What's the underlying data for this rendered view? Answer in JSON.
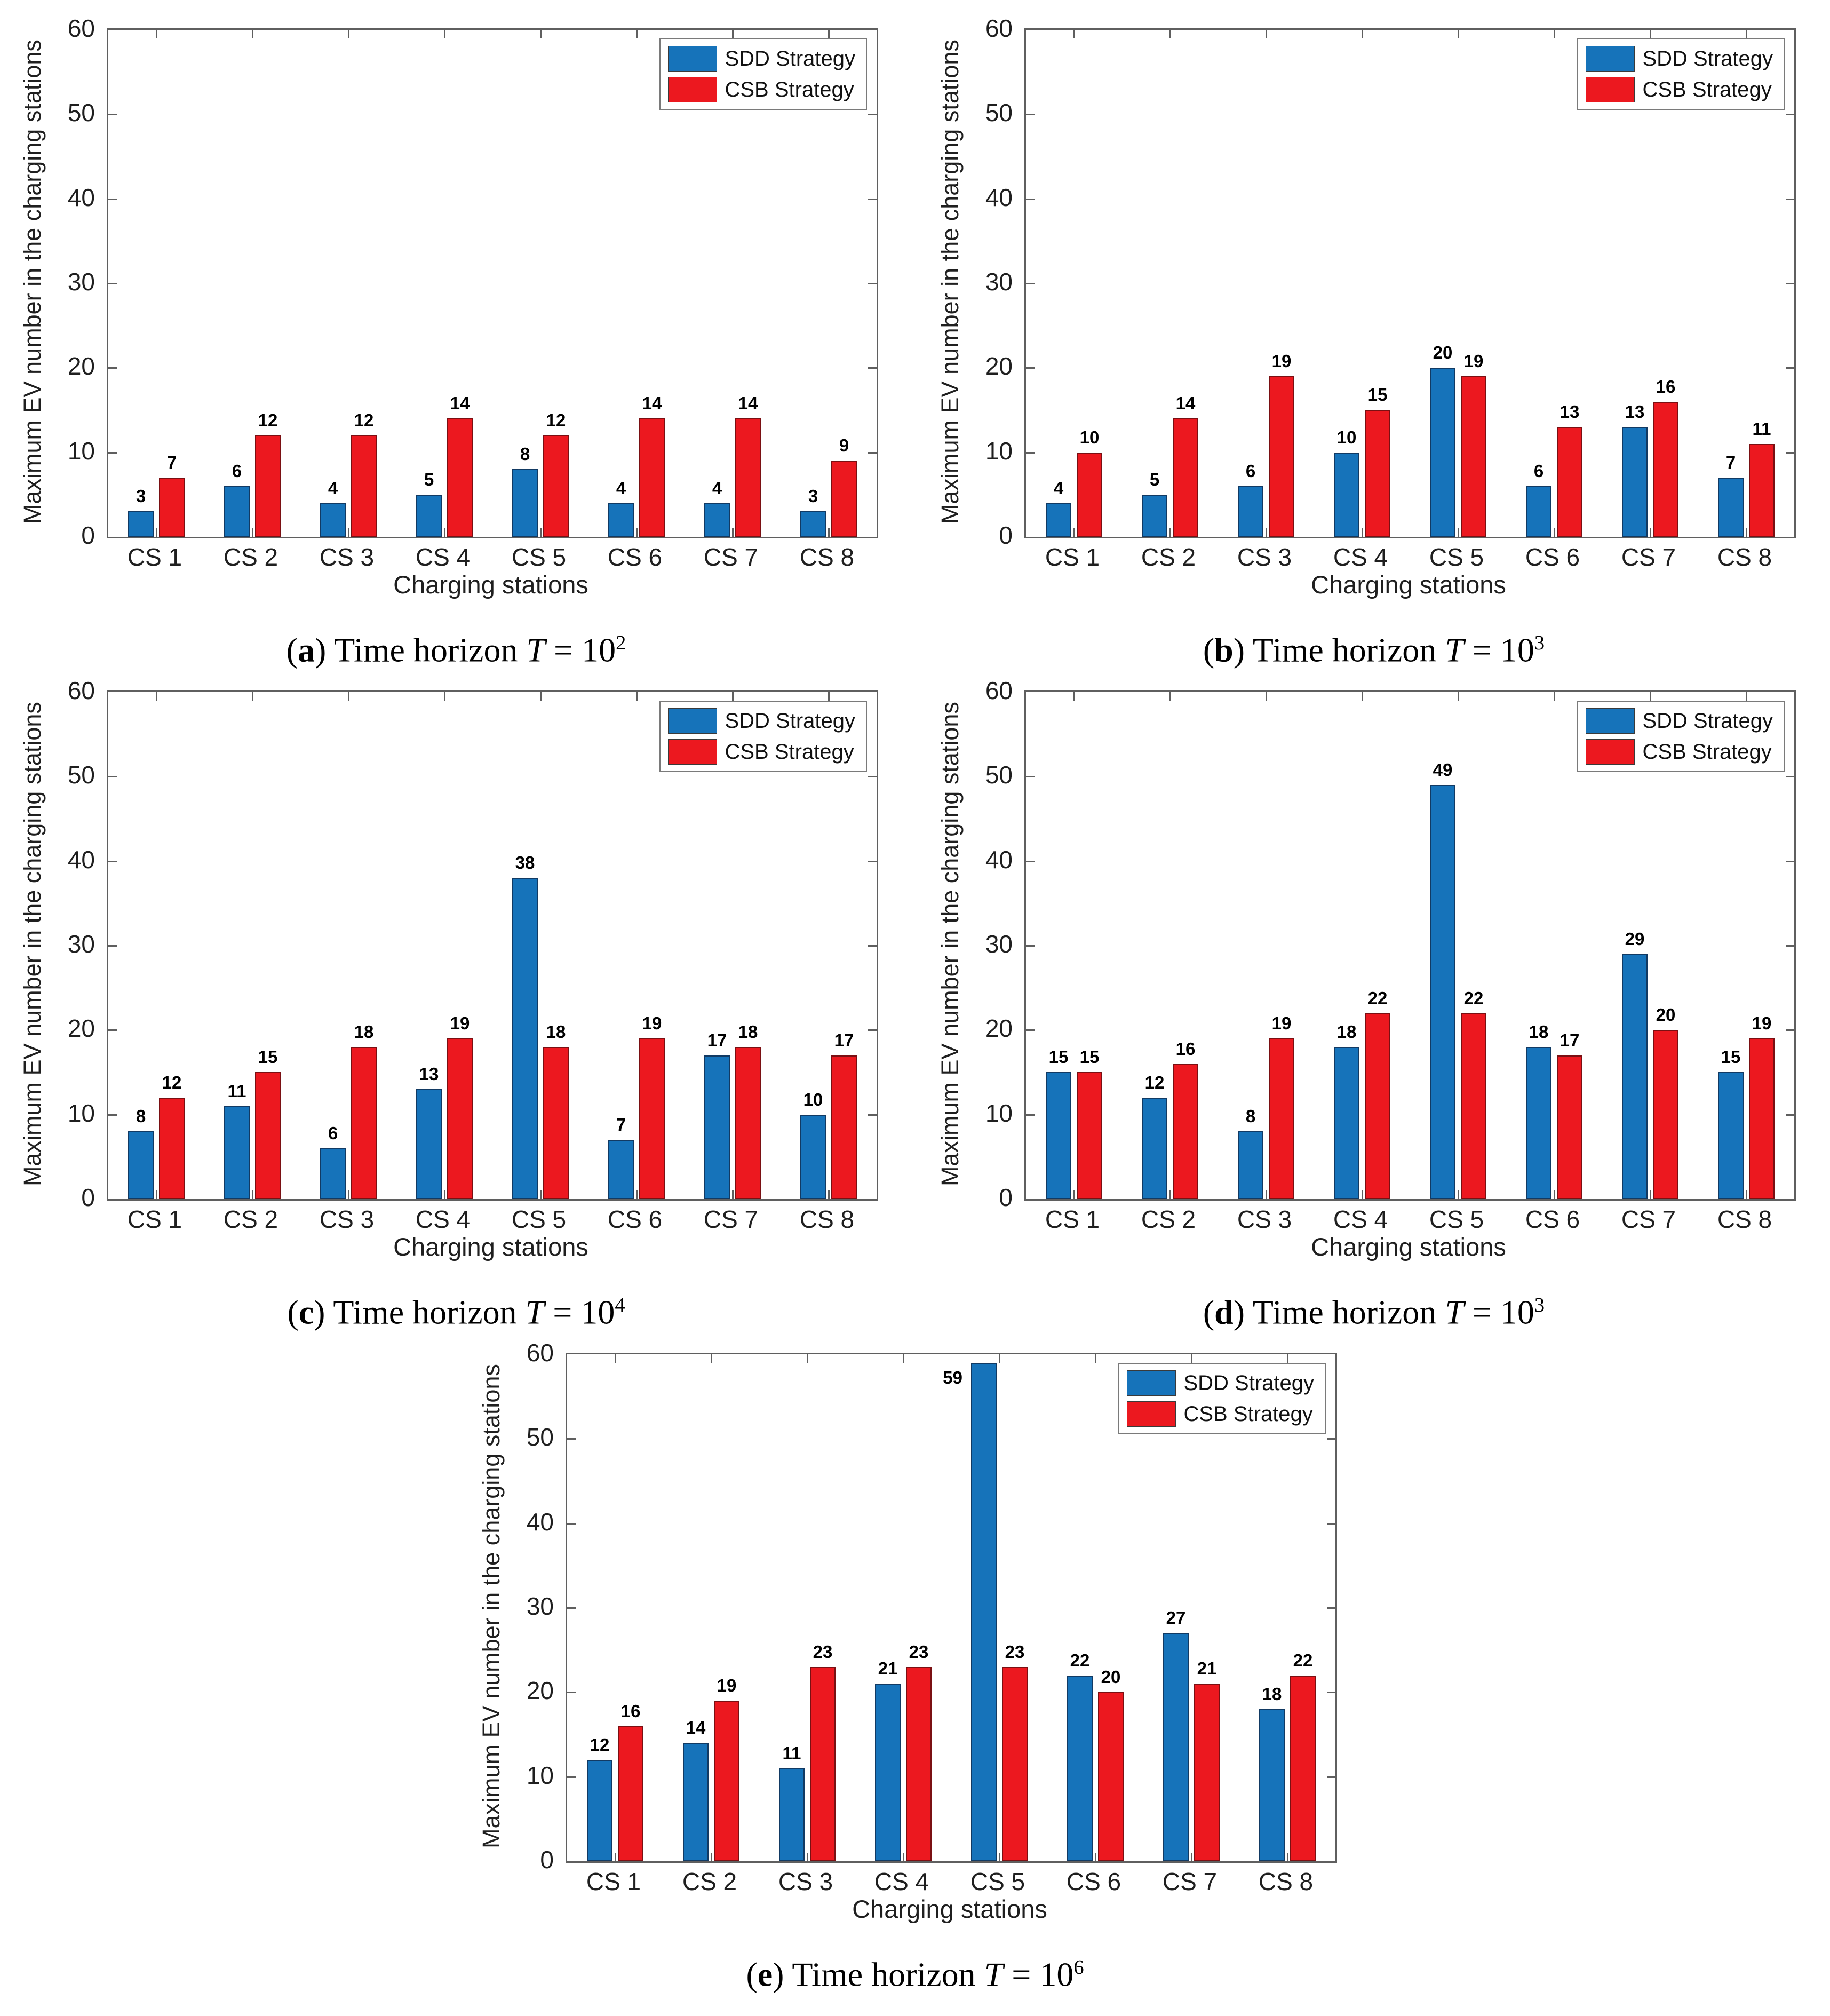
{
  "legend": {
    "items": [
      {
        "label": "SDD Strategy",
        "color": "#1673ba",
        "edge": "#123a63"
      },
      {
        "label": "CSB Strategy",
        "color": "#ec181f",
        "edge": "#7a1013"
      }
    ]
  },
  "axis": {
    "line_color": "#5f5f5f",
    "label_color": "#1f1f1f"
  },
  "chart_data": [
    {
      "id": "a",
      "type": "bar",
      "categories": [
        "CS 1",
        "CS 2",
        "CS 3",
        "CS 4",
        "CS 5",
        "CS 6",
        "CS 7",
        "CS 8"
      ],
      "series": [
        {
          "name": "SDD Strategy",
          "values": [
            3,
            6,
            4,
            5,
            8,
            4,
            4,
            3
          ]
        },
        {
          "name": "CSB Strategy",
          "values": [
            7,
            12,
            12,
            14,
            12,
            14,
            14,
            9
          ]
        }
      ],
      "xlabel": "Charging stations",
      "ylabel": "Maximum EV number in the charging stations",
      "ylim": [
        0,
        60
      ],
      "ytick_step": 10,
      "grid": false,
      "legend_position": "top-right",
      "bar_labels": true,
      "caption": {
        "open": "(",
        "label": "a",
        "close": ") ",
        "text": "Time horizon ",
        "var": "T",
        "eq": " = ",
        "base": "10",
        "exp": "2"
      }
    },
    {
      "id": "b",
      "type": "bar",
      "categories": [
        "CS 1",
        "CS 2",
        "CS 3",
        "CS 4",
        "CS 5",
        "CS 6",
        "CS 7",
        "CS 8"
      ],
      "series": [
        {
          "name": "SDD Strategy",
          "values": [
            4,
            5,
            6,
            10,
            20,
            6,
            13,
            7
          ]
        },
        {
          "name": "CSB Strategy",
          "values": [
            10,
            14,
            19,
            15,
            19,
            13,
            16,
            11
          ]
        }
      ],
      "xlabel": "Charging stations",
      "ylabel": "Maximum EV number in the charging stations",
      "ylim": [
        0,
        60
      ],
      "ytick_step": 10,
      "grid": false,
      "legend_position": "top-right",
      "bar_labels": true,
      "caption": {
        "open": "(",
        "label": "b",
        "close": ") ",
        "text": "Time horizon ",
        "var": "T",
        "eq": " = ",
        "base": "10",
        "exp": "3"
      }
    },
    {
      "id": "c",
      "type": "bar",
      "categories": [
        "CS 1",
        "CS 2",
        "CS 3",
        "CS 4",
        "CS 5",
        "CS 6",
        "CS 7",
        "CS 8"
      ],
      "series": [
        {
          "name": "SDD Strategy",
          "values": [
            8,
            11,
            6,
            13,
            38,
            7,
            17,
            10
          ]
        },
        {
          "name": "CSB Strategy",
          "values": [
            12,
            15,
            18,
            19,
            18,
            19,
            18,
            17
          ]
        }
      ],
      "xlabel": "Charging stations",
      "ylabel": "Maximum EV number in the charging stations",
      "ylim": [
        0,
        60
      ],
      "ytick_step": 10,
      "grid": false,
      "legend_position": "top-right",
      "bar_labels": true,
      "caption": {
        "open": "(",
        "label": "c",
        "close": ") ",
        "text": "Time horizon ",
        "var": "T",
        "eq": " = ",
        "base": "10",
        "exp": "4"
      }
    },
    {
      "id": "d",
      "type": "bar",
      "categories": [
        "CS 1",
        "CS 2",
        "CS 3",
        "CS 4",
        "CS 5",
        "CS 6",
        "CS 7",
        "CS 8"
      ],
      "series": [
        {
          "name": "SDD Strategy",
          "values": [
            15,
            12,
            8,
            18,
            49,
            18,
            29,
            15
          ]
        },
        {
          "name": "CSB Strategy",
          "values": [
            15,
            16,
            19,
            22,
            22,
            17,
            20,
            19
          ]
        }
      ],
      "xlabel": "Charging stations",
      "ylabel": "Maximum EV number in the charging stations",
      "ylim": [
        0,
        60
      ],
      "ytick_step": 10,
      "grid": false,
      "legend_position": "top-right",
      "bar_labels": true,
      "caption": {
        "open": "(",
        "label": "d",
        "close": ") ",
        "text": "Time horizon ",
        "var": "T",
        "eq": " = ",
        "base": "10",
        "exp": "3"
      }
    },
    {
      "id": "e",
      "type": "bar",
      "categories": [
        "CS 1",
        "CS 2",
        "CS 3",
        "CS 4",
        "CS 5",
        "CS 6",
        "CS 7",
        "CS 8"
      ],
      "series": [
        {
          "name": "SDD Strategy",
          "values": [
            12,
            14,
            11,
            21,
            59,
            22,
            27,
            18
          ]
        },
        {
          "name": "CSB Strategy",
          "values": [
            16,
            19,
            23,
            23,
            23,
            20,
            21,
            22
          ]
        }
      ],
      "xlabel": "Charging stations",
      "ylabel": "Maximum EV number in the charging stations",
      "ylim": [
        0,
        60
      ],
      "ytick_step": 10,
      "grid": false,
      "legend_position": "top-right",
      "bar_labels": true,
      "caption": {
        "open": "(",
        "label": "e",
        "close": ") ",
        "text": "Time horizon ",
        "var": "T",
        "eq": " = ",
        "base": "10",
        "exp": "6"
      }
    }
  ]
}
